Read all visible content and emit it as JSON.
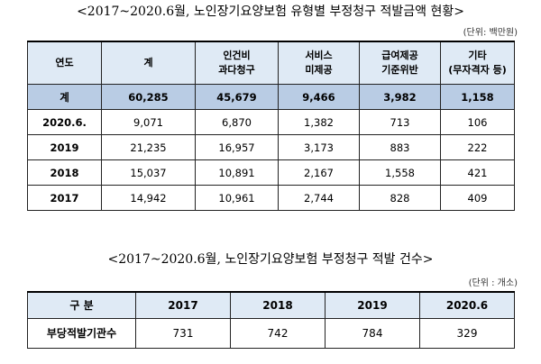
{
  "table1": {
    "title": "<2017~2020.6월, 노인장기요양보험 유형별 부정청구 적발금액 현황>",
    "unit": "(단위: 백만원)",
    "headers": [
      {
        "line1": "연도",
        "line2": ""
      },
      {
        "line1": "계",
        "line2": ""
      },
      {
        "line1": "인건비",
        "line2": "과다청구"
      },
      {
        "line1": "서비스",
        "line2": "미제공"
      },
      {
        "line1": "급여제공",
        "line2": "기준위반"
      },
      {
        "line1": "기타",
        "line2": "(무자격자 등)"
      }
    ],
    "rows": [
      {
        "year": "계",
        "total": "60,285",
        "labor": "45,679",
        "service": "9,466",
        "standard": "3,982",
        "other": "1,158"
      },
      {
        "year": "2020.6.",
        "total": "9,071",
        "labor": "6,870",
        "service": "1,382",
        "standard": "713",
        "other": "106"
      },
      {
        "year": "2019",
        "total": "21,235",
        "labor": "16,957",
        "service": "3,173",
        "standard": "883",
        "other": "222"
      },
      {
        "year": "2018",
        "total": "15,037",
        "labor": "10,891",
        "service": "2,167",
        "standard": "1,558",
        "other": "421"
      },
      {
        "year": "2017",
        "total": "14,942",
        "labor": "10,961",
        "service": "2,744",
        "standard": "828",
        "other": "409"
      }
    ]
  },
  "table2": {
    "title": "<2017~2020.6월, 노인장기요양보험 부정청구 적발 건수>",
    "unit": "(단위 : 개소)",
    "headers": [
      "구 분",
      "2017",
      "2018",
      "2019",
      "2020.6"
    ],
    "row": {
      "label": "부당적발기관수",
      "values": [
        "731",
        "742",
        "784",
        "329"
      ]
    }
  }
}
